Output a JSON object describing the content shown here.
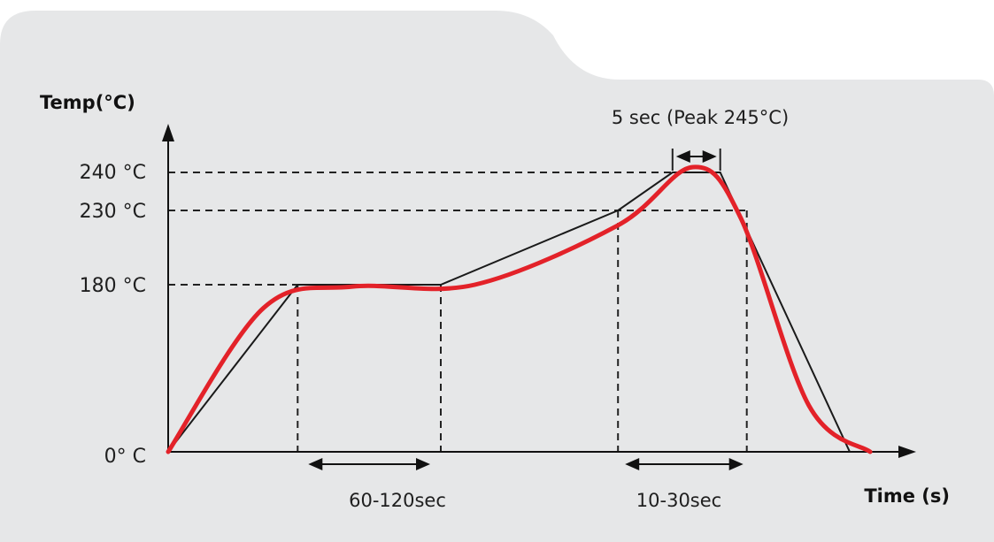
{
  "chart_data": {
    "type": "line",
    "title": "",
    "xlabel": "Time (s)",
    "ylabel": "Temp(°C)",
    "y_ticks": [
      {
        "value": 0,
        "label": "0° C"
      },
      {
        "value": 180,
        "label": "180 °C"
      },
      {
        "value": 230,
        "label": "230 °C"
      },
      {
        "value": 240,
        "label": "240 °C"
      }
    ],
    "annotations": {
      "preheat_window": "60-120sec",
      "reflow_window": "10-30sec",
      "peak_window": "5 sec (Peak 245°C)"
    },
    "guide_profile": {
      "x": [
        0,
        19,
        40,
        66,
        74,
        81,
        100
      ],
      "y": [
        0,
        180,
        180,
        230,
        240,
        240,
        0
      ]
    },
    "measured_profile": {
      "x": [
        0,
        14,
        27,
        45,
        66,
        77,
        84,
        94,
        103
      ],
      "y": [
        0,
        155,
        178,
        180,
        220,
        245,
        225,
        50,
        0
      ]
    },
    "markers_x": [
      19,
      40,
      66,
      74,
      81
    ],
    "colors": {
      "measured": "#e32229",
      "guide": "#1a1a1a",
      "background": "#e6e7e8"
    }
  }
}
